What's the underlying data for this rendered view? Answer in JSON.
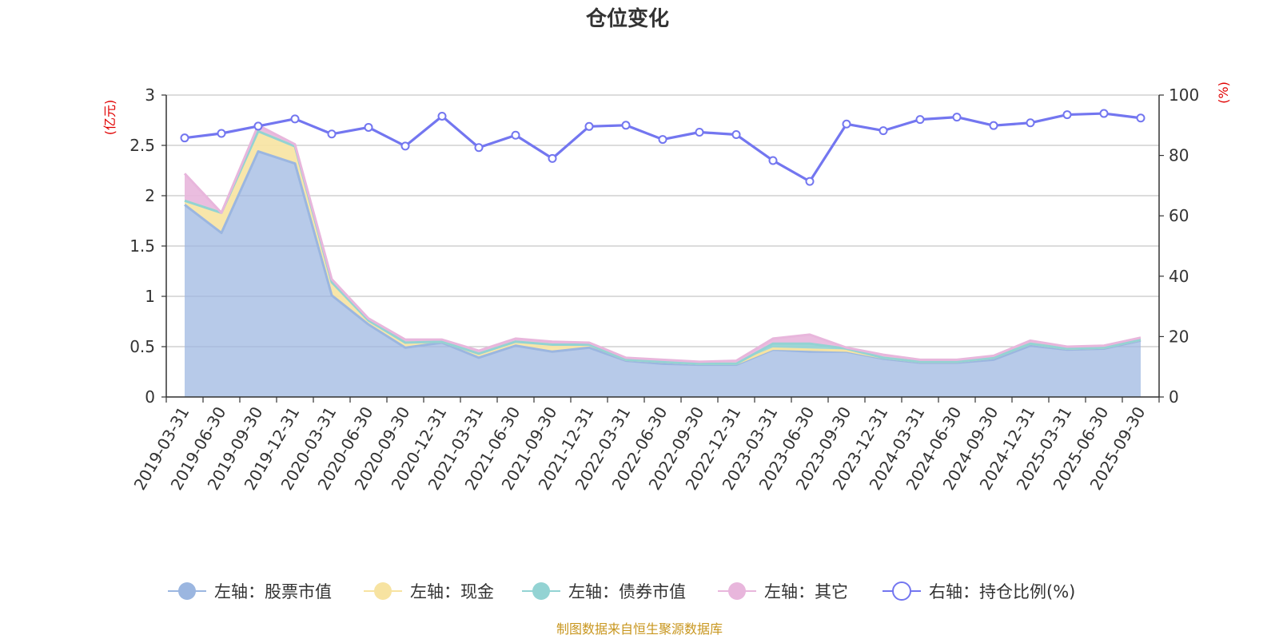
{
  "colors": {
    "stock": "#9bb6e0",
    "cash": "#f7e3a1",
    "bond": "#93d3d3",
    "other": "#e8b6dc",
    "ratio": "#7376f0",
    "grid": "#c8c8c8",
    "axis": "#333333",
    "unit": "#e00000",
    "source": "#c8961e"
  },
  "chart_data": {
    "type": "area",
    "title": "仓位变化",
    "y_left_unit": "(亿元)",
    "y_right_unit": "(%)",
    "y_left_ticks": [
      "0",
      "0.5",
      "1",
      "1.5",
      "2",
      "2.5",
      "3"
    ],
    "y_right_ticks": [
      "0",
      "20",
      "40",
      "60",
      "80",
      "100"
    ],
    "ylim_left": [
      0,
      3
    ],
    "ylim_right": [
      0,
      100
    ],
    "grid": true,
    "legend_position": "bottom",
    "x": [
      "2019-03-31",
      "2019-06-30",
      "2019-09-30",
      "2019-12-31",
      "2020-03-31",
      "2020-06-30",
      "2020-09-30",
      "2020-12-31",
      "2021-03-31",
      "2021-06-30",
      "2021-09-30",
      "2021-12-31",
      "2022-03-31",
      "2022-06-30",
      "2022-09-30",
      "2022-12-31",
      "2023-03-31",
      "2023-06-30",
      "2023-09-30",
      "2023-12-31",
      "2024-03-31",
      "2024-06-30",
      "2024-09-30",
      "2024-12-31",
      "2025-03-31",
      "2025-06-30",
      "2025-09-30"
    ],
    "series": [
      {
        "name": "左轴：股票市值",
        "axis": "left",
        "stacked": true,
        "values": [
          1.91,
          1.63,
          2.44,
          2.32,
          1.01,
          0.72,
          0.49,
          0.54,
          0.39,
          0.51,
          0.45,
          0.49,
          0.36,
          0.33,
          0.32,
          0.32,
          0.47,
          0.45,
          0.45,
          0.38,
          0.34,
          0.34,
          0.37,
          0.51,
          0.47,
          0.48,
          0.56
        ]
      },
      {
        "name": "左轴：现金",
        "axis": "left",
        "stacked": true,
        "values": [
          0.04,
          0.2,
          0.2,
          0.17,
          0.13,
          0.04,
          0.05,
          0.01,
          0.04,
          0.04,
          0.07,
          0.03,
          0.01,
          0.02,
          0.01,
          0.01,
          0.01,
          0.02,
          0.01,
          0.01,
          0.01,
          0.01,
          0.02,
          0.02,
          0.01,
          0.01,
          0.01
        ]
      },
      {
        "name": "左轴：债券市值",
        "axis": "left",
        "stacked": true,
        "values": [
          0,
          0,
          0,
          0,
          0,
          0,
          0,
          0,
          0,
          0,
          0,
          0,
          0,
          0,
          0,
          0,
          0.05,
          0.06,
          0.02,
          0,
          0,
          0,
          0,
          0,
          0,
          0,
          0
        ]
      },
      {
        "name": "左轴：其它",
        "axis": "left",
        "stacked": true,
        "values": [
          0.27,
          0,
          0.06,
          0.02,
          0.03,
          0.02,
          0.03,
          0.02,
          0.03,
          0.03,
          0.03,
          0.02,
          0.02,
          0.02,
          0.02,
          0.03,
          0.05,
          0.09,
          0.01,
          0.03,
          0.02,
          0.02,
          0.02,
          0.03,
          0.02,
          0.02,
          0.02
        ]
      },
      {
        "name": "右轴：持仓比例(%)",
        "axis": "right",
        "values": [
          85.8,
          87.3,
          89.7,
          92.1,
          87.1,
          89.3,
          83.1,
          93.0,
          82.6,
          86.7,
          79.0,
          89.6,
          90.0,
          85.3,
          87.7,
          86.9,
          78.3,
          71.4,
          90.4,
          88.2,
          91.9,
          92.7,
          89.9,
          90.8,
          93.5,
          93.9,
          92.4
        ]
      }
    ],
    "source": "制图数据来自恒生聚源数据库"
  }
}
